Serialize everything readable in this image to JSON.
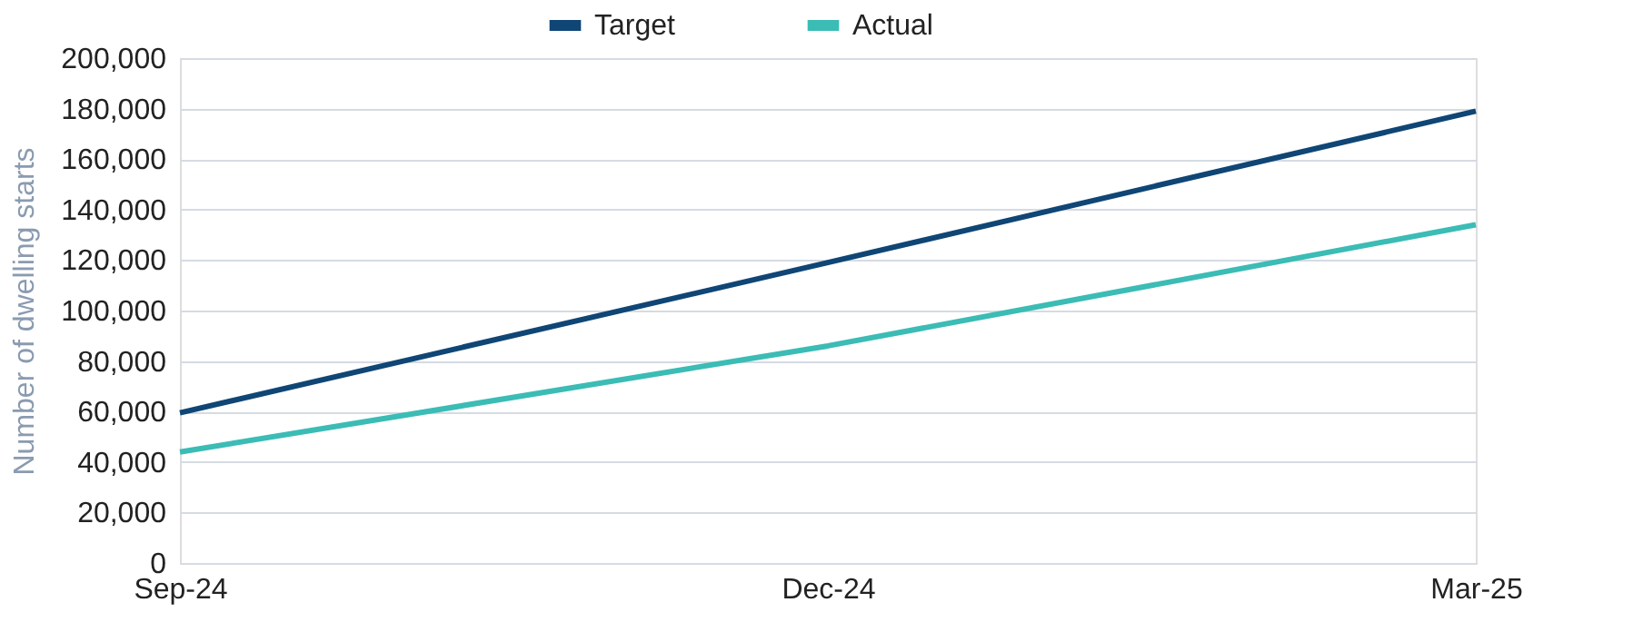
{
  "chart_data": {
    "type": "line",
    "ylabel": "Number of dwelling starts",
    "categories": [
      "Sep-24",
      "Dec-24",
      "Mar-25"
    ],
    "series": [
      {
        "name": "Target",
        "color": "#0f4675",
        "values": [
          59500,
          119000,
          179000
        ]
      },
      {
        "name": "Actual",
        "color": "#3bbcb5",
        "values": [
          44000,
          86000,
          134000
        ]
      }
    ],
    "ylim": [
      0,
      200000
    ],
    "yticks": [
      0,
      {
        "value": 20000,
        "label": "20,000"
      },
      {
        "value": 40000,
        "label": "40,000"
      },
      {
        "value": 60000,
        "label": "60,000"
      },
      {
        "value": 80000,
        "label": "80,000"
      },
      {
        "value": 100000,
        "label": "100,000"
      },
      {
        "value": 120000,
        "label": "120,000"
      },
      {
        "value": 140000,
        "label": "140,000"
      },
      {
        "value": 160000,
        "label": "160,000"
      },
      {
        "value": 180000,
        "label": "180,000"
      },
      {
        "value": 200000,
        "label": "200,000"
      }
    ],
    "grid": "y",
    "legend": "top",
    "marker": "none",
    "line_style": "solid"
  }
}
